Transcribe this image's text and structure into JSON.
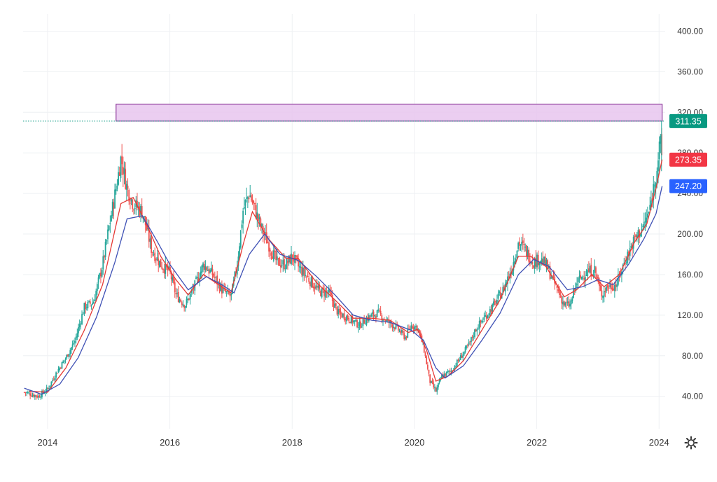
{
  "chart_data": {
    "type": "candlestick",
    "x_axis": {
      "tick_labels": [
        "2014",
        "2016",
        "2018",
        "2020",
        "2022",
        "2024"
      ],
      "range": [
        2013.6,
        2024.1
      ]
    },
    "y_axis": {
      "tick_labels": [
        "40.00",
        "80.00",
        "120.00",
        "160.00",
        "200.00",
        "240.00",
        "280.00",
        "320.00",
        "360.00",
        "400.00"
      ],
      "range": [
        8,
        410
      ],
      "position": "right"
    },
    "grid": true,
    "price_anchors": [
      [
        2013.62,
        44
      ],
      [
        2013.85,
        40
      ],
      [
        2014.0,
        47
      ],
      [
        2014.15,
        64
      ],
      [
        2014.3,
        78
      ],
      [
        2014.45,
        95
      ],
      [
        2014.6,
        128
      ],
      [
        2014.75,
        133
      ],
      [
        2014.9,
        170
      ],
      [
        2015.0,
        205
      ],
      [
        2015.12,
        245
      ],
      [
        2015.2,
        275
      ],
      [
        2015.3,
        245
      ],
      [
        2015.4,
        230
      ],
      [
        2015.55,
        222
      ],
      [
        2015.7,
        185
      ],
      [
        2015.85,
        170
      ],
      [
        2016.0,
        162
      ],
      [
        2016.1,
        140
      ],
      [
        2016.25,
        130
      ],
      [
        2016.4,
        148
      ],
      [
        2016.55,
        170
      ],
      [
        2016.7,
        160
      ],
      [
        2016.85,
        145
      ],
      [
        2017.0,
        138
      ],
      [
        2017.1,
        170
      ],
      [
        2017.2,
        225
      ],
      [
        2017.3,
        240
      ],
      [
        2017.5,
        205
      ],
      [
        2017.6,
        192
      ],
      [
        2017.75,
        172
      ],
      [
        2017.9,
        170
      ],
      [
        2018.0,
        178
      ],
      [
        2018.1,
        168
      ],
      [
        2018.25,
        157
      ],
      [
        2018.45,
        143
      ],
      [
        2018.6,
        142
      ],
      [
        2018.75,
        122
      ],
      [
        2018.9,
        118
      ],
      [
        2019.1,
        110
      ],
      [
        2019.25,
        118
      ],
      [
        2019.4,
        122
      ],
      [
        2019.55,
        114
      ],
      [
        2019.7,
        108
      ],
      [
        2019.85,
        98
      ],
      [
        2019.95,
        110
      ],
      [
        2020.05,
        108
      ],
      [
        2020.15,
        88
      ],
      [
        2020.25,
        55
      ],
      [
        2020.35,
        45
      ],
      [
        2020.45,
        60
      ],
      [
        2020.6,
        65
      ],
      [
        2020.75,
        78
      ],
      [
        2020.9,
        92
      ],
      [
        2021.0,
        106
      ],
      [
        2021.15,
        118
      ],
      [
        2021.3,
        130
      ],
      [
        2021.45,
        145
      ],
      [
        2021.6,
        168
      ],
      [
        2021.7,
        192
      ],
      [
        2021.8,
        185
      ],
      [
        2021.95,
        172
      ],
      [
        2022.05,
        176
      ],
      [
        2022.15,
        170
      ],
      [
        2022.3,
        150
      ],
      [
        2022.45,
        130
      ],
      [
        2022.55,
        130
      ],
      [
        2022.65,
        152
      ],
      [
        2022.8,
        162
      ],
      [
        2022.95,
        165
      ],
      [
        2023.05,
        140
      ],
      [
        2023.15,
        148
      ],
      [
        2023.3,
        150
      ],
      [
        2023.45,
        175
      ],
      [
        2023.6,
        195
      ],
      [
        2023.75,
        208
      ],
      [
        2023.85,
        225
      ],
      [
        2023.95,
        260
      ],
      [
        2024.02,
        290
      ],
      [
        2024.05,
        273.35
      ]
    ],
    "series": [
      {
        "name": "",
        "color": "#e53935",
        "values": [
          [
            2013.7,
            45
          ],
          [
            2014.0,
            44
          ],
          [
            2014.3,
            68
          ],
          [
            2014.6,
            105
          ],
          [
            2014.9,
            150
          ],
          [
            2015.2,
            230
          ],
          [
            2015.4,
            236
          ],
          [
            2015.6,
            212
          ],
          [
            2015.85,
            178
          ],
          [
            2016.1,
            155
          ],
          [
            2016.3,
            140
          ],
          [
            2016.55,
            160
          ],
          [
            2016.8,
            150
          ],
          [
            2017.0,
            142
          ],
          [
            2017.2,
            190
          ],
          [
            2017.35,
            222
          ],
          [
            2017.6,
            196
          ],
          [
            2017.9,
            176
          ],
          [
            2018.1,
            176
          ],
          [
            2018.4,
            152
          ],
          [
            2018.7,
            135
          ],
          [
            2019.0,
            117
          ],
          [
            2019.3,
            117
          ],
          [
            2019.6,
            115
          ],
          [
            2019.9,
            103
          ],
          [
            2020.05,
            106
          ],
          [
            2020.2,
            85
          ],
          [
            2020.35,
            55
          ],
          [
            2020.55,
            60
          ],
          [
            2020.8,
            75
          ],
          [
            2021.1,
            105
          ],
          [
            2021.4,
            135
          ],
          [
            2021.7,
            178
          ],
          [
            2021.9,
            178
          ],
          [
            2022.15,
            168
          ],
          [
            2022.45,
            138
          ],
          [
            2022.65,
            145
          ],
          [
            2022.9,
            160
          ],
          [
            2023.1,
            148
          ],
          [
            2023.35,
            160
          ],
          [
            2023.6,
            192
          ],
          [
            2023.8,
            210
          ],
          [
            2023.95,
            245
          ],
          [
            2024.05,
            273.35
          ]
        ]
      },
      {
        "name": "",
        "color": "#3f51b5",
        "values": [
          [
            2013.62,
            48
          ],
          [
            2013.9,
            42
          ],
          [
            2014.2,
            52
          ],
          [
            2014.5,
            78
          ],
          [
            2014.8,
            118
          ],
          [
            2015.1,
            172
          ],
          [
            2015.3,
            215
          ],
          [
            2015.55,
            218
          ],
          [
            2015.8,
            192
          ],
          [
            2016.0,
            170
          ],
          [
            2016.3,
            145
          ],
          [
            2016.6,
            158
          ],
          [
            2016.85,
            150
          ],
          [
            2017.05,
            142
          ],
          [
            2017.3,
            180
          ],
          [
            2017.55,
            200
          ],
          [
            2017.8,
            180
          ],
          [
            2018.1,
            174
          ],
          [
            2018.4,
            158
          ],
          [
            2018.7,
            140
          ],
          [
            2019.0,
            120
          ],
          [
            2019.3,
            115
          ],
          [
            2019.6,
            113
          ],
          [
            2019.95,
            105
          ],
          [
            2020.15,
            95
          ],
          [
            2020.35,
            68
          ],
          [
            2020.5,
            58
          ],
          [
            2020.8,
            70
          ],
          [
            2021.1,
            95
          ],
          [
            2021.4,
            122
          ],
          [
            2021.7,
            160
          ],
          [
            2021.95,
            175
          ],
          [
            2022.2,
            168
          ],
          [
            2022.5,
            145
          ],
          [
            2022.75,
            148
          ],
          [
            2023.0,
            155
          ],
          [
            2023.25,
            150
          ],
          [
            2023.5,
            170
          ],
          [
            2023.75,
            195
          ],
          [
            2023.95,
            220
          ],
          [
            2024.05,
            247.2
          ]
        ]
      }
    ],
    "markers": {
      "last_price": {
        "value": "311.35",
        "num": 311.35,
        "color": "#089981"
      },
      "ma_fast": {
        "value": "273.35",
        "num": 273.35,
        "color": "#f23645"
      },
      "ma_slow": {
        "value": "247.20",
        "num": 247.2,
        "color": "#2962ff"
      }
    },
    "zone": {
      "from": 311.35,
      "to": 328,
      "x_start": 2015.12,
      "x_end": 2024.05,
      "fill": "#e8c6ef",
      "border": "#8e3b9b"
    },
    "candle_colors": {
      "up": "#26a69a",
      "down": "#ef5350"
    }
  },
  "icons": {
    "settings": "gear-icon"
  }
}
